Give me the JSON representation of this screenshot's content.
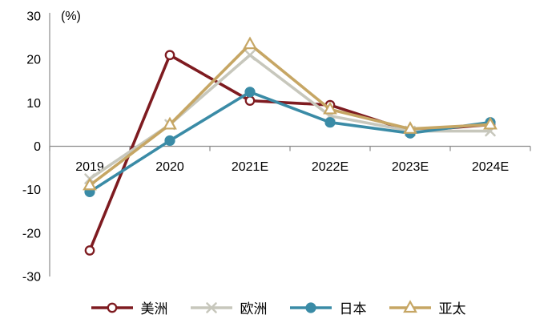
{
  "chart_data": {
    "type": "line",
    "title": "",
    "unit_label": "(%)",
    "categories": [
      "2019",
      "2020",
      "2021E",
      "2022E",
      "2023E",
      "2024E"
    ],
    "series": [
      {
        "name": "美洲",
        "slug": "americas",
        "values": [
          -24,
          21,
          10.5,
          9.5,
          3.5,
          5
        ],
        "color": "#7E1B20",
        "marker": "circle-open"
      },
      {
        "name": "欧洲",
        "slug": "europe",
        "values": [
          -7.5,
          5,
          21,
          7,
          3.5,
          3.5
        ],
        "color": "#C7C7BC",
        "marker": "x"
      },
      {
        "name": "日本",
        "slug": "japan",
        "values": [
          -10.5,
          1.3,
          12.5,
          5.5,
          3,
          5.5
        ],
        "color": "#3A8BA6",
        "marker": "circle-filled"
      },
      {
        "name": "亚太",
        "slug": "asia-pacific",
        "values": [
          -9,
          5,
          23.5,
          8.5,
          4,
          5
        ],
        "color": "#C6A664",
        "marker": "triangle-open"
      }
    ],
    "y_axis": {
      "min": -30,
      "max": 30,
      "step": 10,
      "tick_labels": [
        "30",
        "20",
        "10",
        "0",
        "-10",
        "-20",
        "-30"
      ]
    },
    "x_axis": {
      "tick_marks": true
    },
    "axis_color": "#8C8C8C",
    "grid": "off",
    "legend_position": "bottom",
    "background_color": "#ffffff",
    "text_color": "#000000"
  }
}
